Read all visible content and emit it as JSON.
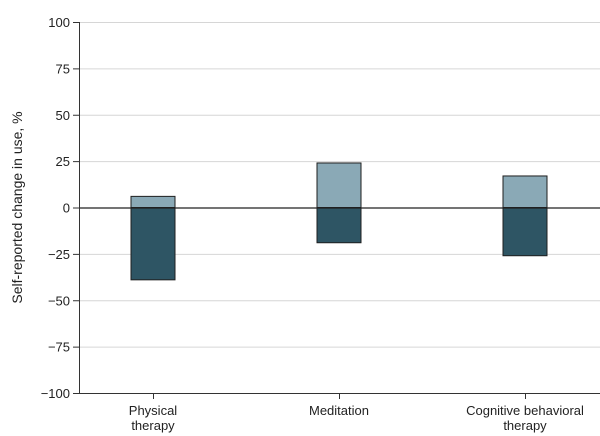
{
  "chart_data": {
    "type": "bar",
    "ylabel": "Self-reported change in use, %",
    "xlabel": "",
    "ylim": [
      -100,
      100
    ],
    "yticks": [
      100,
      75,
      50,
      25,
      0,
      -25,
      -50,
      -75,
      -100
    ],
    "ytick_labels": [
      "100",
      "75",
      "50",
      "25",
      "0",
      "−25",
      "−50",
      "−75",
      "−100"
    ],
    "grid": true,
    "categories": [
      [
        "Physical",
        "therapy"
      ],
      [
        "Meditation"
      ],
      [
        "Cognitive behavioral",
        "therapy"
      ]
    ],
    "series": [
      {
        "values": [
          6,
          24,
          17
        ],
        "color": "#8aa9b6"
      },
      {
        "values": [
          -39,
          -19,
          -26
        ],
        "color": "#2e5564"
      }
    ]
  }
}
